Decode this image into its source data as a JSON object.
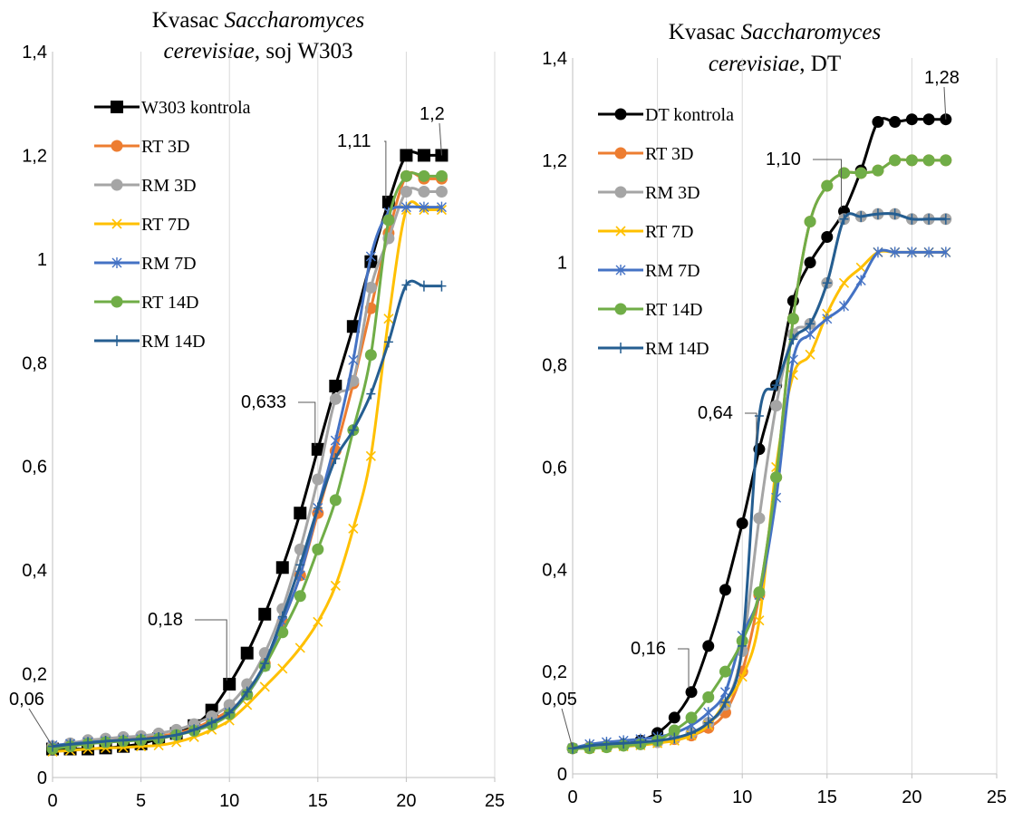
{
  "chart_data": [
    {
      "type": "line",
      "title": "Kvasac Saccharomyces cerevisiae, soj W303",
      "title_line1": "Kvasac Saccharomyces",
      "title_line1_plain": "Kvasac ",
      "title_line1_italic": "Saccharomyces",
      "title_line2_italic": "cerevisiae",
      "title_line2_plain": ", soj W303",
      "xlabel": "",
      "ylabel": "",
      "xlim": [
        0,
        25
      ],
      "ylim": [
        0,
        1.4
      ],
      "xticks": [
        0,
        5,
        10,
        15,
        20,
        25
      ],
      "xtick_labels": [
        "0",
        "5",
        "10",
        "15",
        "20",
        "25"
      ],
      "yticks": [
        0,
        0.2,
        0.4,
        0.6,
        0.8,
        1,
        1.2,
        1.4
      ],
      "ytick_labels": [
        "0",
        "0,2",
        "0,4",
        "0,6",
        "0,8",
        "1",
        "1,2",
        "1,4"
      ],
      "grid": "vertical",
      "legend_position": "top-left",
      "series": [
        {
          "name": "W303 kontrola",
          "color": "#000000",
          "marker": "square",
          "x": [
            0,
            1,
            2,
            3,
            4,
            5,
            6,
            7,
            8,
            9,
            10,
            11,
            12,
            13,
            14,
            15,
            16,
            17,
            18,
            19,
            20,
            21,
            22
          ],
          "y": [
            0.055,
            0.055,
            0.055,
            0.057,
            0.06,
            0.065,
            0.075,
            0.085,
            0.1,
            0.13,
            0.18,
            0.24,
            0.315,
            0.405,
            0.51,
            0.633,
            0.755,
            0.87,
            0.995,
            1.11,
            1.2,
            1.2,
            1.2
          ]
        },
        {
          "name": "RT 3D",
          "color": "#ED7D31",
          "marker": "circle",
          "x": [
            0,
            1,
            2,
            3,
            4,
            5,
            6,
            7,
            8,
            9,
            10,
            11,
            12,
            13,
            14,
            15,
            16,
            17,
            18,
            19,
            20,
            21,
            22
          ],
          "y": [
            0.06,
            0.065,
            0.07,
            0.072,
            0.074,
            0.077,
            0.08,
            0.085,
            0.095,
            0.11,
            0.13,
            0.16,
            0.22,
            0.3,
            0.39,
            0.51,
            0.63,
            0.76,
            0.905,
            1.05,
            1.16,
            1.155,
            1.155
          ]
        },
        {
          "name": "RM 3D",
          "color": "#A5A5A5",
          "marker": "circle",
          "x": [
            0,
            1,
            2,
            3,
            4,
            5,
            6,
            7,
            8,
            9,
            10,
            11,
            12,
            13,
            14,
            15,
            16,
            17,
            18,
            19,
            20,
            21,
            22
          ],
          "y": [
            0.06,
            0.066,
            0.072,
            0.075,
            0.078,
            0.08,
            0.085,
            0.092,
            0.103,
            0.118,
            0.14,
            0.18,
            0.24,
            0.325,
            0.44,
            0.575,
            0.73,
            0.765,
            0.945,
            1.04,
            1.13,
            1.13,
            1.13
          ]
        },
        {
          "name": "RT 7D",
          "color": "#FFC000",
          "marker": "x",
          "x": [
            0,
            1,
            2,
            3,
            4,
            5,
            6,
            7,
            8,
            9,
            10,
            11,
            12,
            13,
            14,
            15,
            16,
            17,
            18,
            19,
            20,
            21,
            22
          ],
          "y": [
            0.05,
            0.052,
            0.055,
            0.057,
            0.058,
            0.06,
            0.062,
            0.068,
            0.078,
            0.092,
            0.11,
            0.14,
            0.175,
            0.21,
            0.25,
            0.3,
            0.37,
            0.48,
            0.62,
            0.885,
            1.095,
            1.095,
            1.095
          ]
        },
        {
          "name": "RM 7D",
          "color": "#4472C4",
          "marker": "star",
          "x": [
            0,
            1,
            2,
            3,
            4,
            5,
            6,
            7,
            8,
            9,
            10,
            11,
            12,
            13,
            14,
            15,
            16,
            17,
            18,
            19,
            20,
            21,
            22
          ],
          "y": [
            0.062,
            0.065,
            0.068,
            0.07,
            0.072,
            0.074,
            0.077,
            0.082,
            0.092,
            0.105,
            0.125,
            0.16,
            0.215,
            0.3,
            0.39,
            0.52,
            0.65,
            0.805,
            1.005,
            1.09,
            1.1,
            1.1,
            1.1
          ]
        },
        {
          "name": "RT 14D",
          "color": "#70AD47",
          "marker": "circle",
          "x": [
            0,
            1,
            2,
            3,
            4,
            5,
            6,
            7,
            8,
            9,
            10,
            11,
            12,
            13,
            14,
            15,
            16,
            17,
            18,
            19,
            20,
            21,
            22
          ],
          "y": [
            0.055,
            0.06,
            0.065,
            0.068,
            0.07,
            0.072,
            0.075,
            0.082,
            0.09,
            0.102,
            0.122,
            0.16,
            0.215,
            0.28,
            0.35,
            0.44,
            0.535,
            0.67,
            0.815,
            1.075,
            1.16,
            1.16,
            1.16
          ]
        },
        {
          "name": "RM 14D",
          "color": "#255E91",
          "marker": "plus",
          "x": [
            0,
            1,
            2,
            3,
            4,
            5,
            6,
            7,
            8,
            9,
            10,
            11,
            12,
            13,
            14,
            15,
            16,
            17,
            18,
            19,
            20,
            21,
            22
          ],
          "y": [
            0.06,
            0.064,
            0.067,
            0.07,
            0.072,
            0.074,
            0.077,
            0.082,
            0.092,
            0.106,
            0.125,
            0.165,
            0.22,
            0.31,
            0.41,
            0.52,
            0.615,
            0.67,
            0.74,
            0.84,
            0.95,
            0.948,
            0.948
          ]
        }
      ],
      "annotations": [
        {
          "text": "0,06",
          "x": 0,
          "y": 0.06
        },
        {
          "text": "0,18",
          "x": 10,
          "y": 0.18
        },
        {
          "text": "0,633",
          "x": 15,
          "y": 0.633
        },
        {
          "text": "1,11",
          "x": 19,
          "y": 1.11
        },
        {
          "text": "1,2",
          "x": 22,
          "y": 1.2
        }
      ]
    },
    {
      "type": "line",
      "title": "Kvasac Saccharomyces cerevisiae, DT",
      "title_line1_plain": "Kvasac ",
      "title_line1_italic": "Saccharomyces",
      "title_line2_italic": "cerevisiae",
      "title_line2_plain": ", DT",
      "xlabel": "",
      "ylabel": "",
      "xlim": [
        0,
        25
      ],
      "ylim": [
        0,
        1.4
      ],
      "xticks": [
        0,
        5,
        10,
        15,
        20,
        25
      ],
      "xtick_labels": [
        "0",
        "5",
        "10",
        "15",
        "20",
        "25"
      ],
      "yticks": [
        0,
        0.2,
        0.4,
        0.6,
        0.8,
        1,
        1.2,
        1.4
      ],
      "ytick_labels": [
        "0",
        "0,2",
        "0,4",
        "0,6",
        "0,8",
        "1",
        "1,2",
        "1,4"
      ],
      "grid": "vertical",
      "legend_position": "top-left",
      "series": [
        {
          "name": "DT kontrola",
          "color": "#000000",
          "marker": "circle",
          "x": [
            0,
            1,
            2,
            3,
            4,
            5,
            6,
            7,
            8,
            9,
            10,
            11,
            12,
            13,
            14,
            15,
            16,
            17,
            18,
            19,
            20,
            21,
            22
          ],
          "y": [
            0.05,
            0.052,
            0.055,
            0.058,
            0.065,
            0.08,
            0.11,
            0.16,
            0.25,
            0.36,
            0.49,
            0.635,
            0.76,
            0.925,
            1.0,
            1.05,
            1.1,
            1.18,
            1.275,
            1.275,
            1.28,
            1.28,
            1.28
          ]
        },
        {
          "name": "RT 3D",
          "color": "#ED7D31",
          "marker": "circle",
          "x": [
            0,
            1,
            2,
            3,
            4,
            5,
            6,
            7,
            8,
            9,
            10,
            11,
            12,
            13,
            14,
            15,
            16,
            17,
            18,
            19,
            20,
            21,
            22
          ],
          "y": [
            0.05,
            0.052,
            0.055,
            0.056,
            0.058,
            0.062,
            0.068,
            0.075,
            0.09,
            0.12,
            0.2,
            0.35,
            0.58,
            0.89,
            1.08,
            1.15,
            1.175,
            1.175,
            1.18,
            1.2,
            1.2,
            1.2,
            1.2
          ]
        },
        {
          "name": "RM 3D",
          "color": "#A5A5A5",
          "marker": "circle",
          "x": [
            0,
            1,
            2,
            3,
            4,
            5,
            6,
            7,
            8,
            9,
            10,
            11,
            12,
            13,
            14,
            15,
            16,
            17,
            18,
            19,
            20,
            21,
            22
          ],
          "y": [
            0.05,
            0.052,
            0.055,
            0.056,
            0.058,
            0.062,
            0.07,
            0.08,
            0.1,
            0.135,
            0.24,
            0.5,
            0.72,
            0.86,
            0.88,
            0.96,
            1.085,
            1.09,
            1.095,
            1.095,
            1.085,
            1.085,
            1.085
          ]
        },
        {
          "name": "RT 7D",
          "color": "#FFC000",
          "marker": "x",
          "x": [
            0,
            1,
            2,
            3,
            4,
            5,
            6,
            7,
            8,
            9,
            10,
            11,
            12,
            13,
            14,
            15,
            16,
            17,
            18,
            19,
            20,
            21,
            22
          ],
          "y": [
            0.05,
            0.05,
            0.052,
            0.054,
            0.056,
            0.06,
            0.065,
            0.075,
            0.095,
            0.14,
            0.19,
            0.3,
            0.6,
            0.78,
            0.82,
            0.9,
            0.96,
            0.99,
            1.02,
            1.02,
            1.02,
            1.02,
            1.02
          ]
        },
        {
          "name": "RM 7D",
          "color": "#4472C4",
          "marker": "star",
          "x": [
            0,
            1,
            2,
            3,
            4,
            5,
            6,
            7,
            8,
            9,
            10,
            11,
            12,
            13,
            14,
            15,
            16,
            17,
            18,
            19,
            20,
            21,
            22
          ],
          "y": [
            0.05,
            0.058,
            0.062,
            0.065,
            0.068,
            0.072,
            0.08,
            0.095,
            0.12,
            0.16,
            0.27,
            0.35,
            0.54,
            0.81,
            0.86,
            0.89,
            0.915,
            0.965,
            1.02,
            1.02,
            1.02,
            1.02,
            1.02
          ]
        },
        {
          "name": "RT 14D",
          "color": "#70AD47",
          "marker": "circle",
          "x": [
            0,
            1,
            2,
            3,
            4,
            5,
            6,
            7,
            8,
            9,
            10,
            11,
            12,
            13,
            14,
            15,
            16,
            17,
            18,
            19,
            20,
            21,
            22
          ],
          "y": [
            0.05,
            0.05,
            0.052,
            0.055,
            0.058,
            0.065,
            0.085,
            0.11,
            0.15,
            0.2,
            0.26,
            0.355,
            0.58,
            0.89,
            1.08,
            1.15,
            1.175,
            1.175,
            1.18,
            1.2,
            1.2,
            1.2,
            1.2
          ]
        },
        {
          "name": "RM 14D",
          "color": "#255E91",
          "marker": "plus",
          "x": [
            0,
            1,
            2,
            3,
            4,
            5,
            6,
            7,
            8,
            9,
            10,
            11,
            12,
            13,
            14,
            15,
            16,
            17,
            18,
            19,
            20,
            21,
            22
          ],
          "y": [
            0.05,
            0.055,
            0.058,
            0.06,
            0.062,
            0.065,
            0.07,
            0.08,
            0.1,
            0.14,
            0.25,
            0.7,
            0.76,
            0.85,
            0.88,
            0.96,
            1.085,
            1.09,
            1.095,
            1.095,
            1.085,
            1.085,
            1.085
          ]
        }
      ],
      "annotations": [
        {
          "text": "0,05",
          "x": 0,
          "y": 0.05
        },
        {
          "text": "0,16",
          "x": 7,
          "y": 0.16
        },
        {
          "text": "0,64",
          "x": 11,
          "y": 0.635
        },
        {
          "text": "1,10",
          "x": 16,
          "y": 1.1
        },
        {
          "text": "1,28",
          "x": 22,
          "y": 1.28
        }
      ]
    }
  ]
}
